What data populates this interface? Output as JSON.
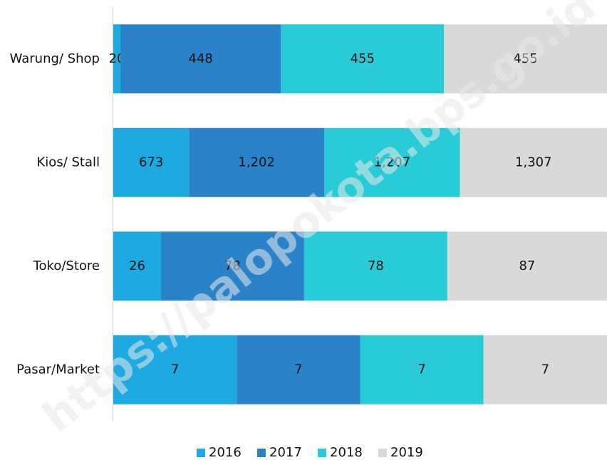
{
  "chart_data": {
    "type": "bar",
    "orientation": "horizontal",
    "stacking": "percent",
    "watermark": "https://palopokota.bps.go.id",
    "categories": [
      "Warung/ Shop",
      "Kios/ Stall",
      "Toko/Store",
      "Pasar/Market"
    ],
    "series": [
      {
        "name": "2016",
        "color": "#1fa9e1",
        "values": [
          20,
          673,
          26,
          7
        ]
      },
      {
        "name": "2017",
        "color": "#2a82c9",
        "values": [
          448,
          1202,
          78,
          7
        ],
        "value_labels": [
          "448",
          "1,202",
          "78",
          "7"
        ]
      },
      {
        "name": "2018",
        "color": "#29ccd6",
        "values": [
          455,
          1207,
          78,
          7
        ],
        "value_labels": [
          "455",
          "1,207",
          "78",
          "7"
        ]
      },
      {
        "name": "2019",
        "color": "#d9d9d9",
        "values": [
          455,
          1307,
          87,
          7
        ],
        "value_labels": [
          "455",
          "1,307",
          "87",
          "7"
        ]
      }
    ],
    "legend": "bottom"
  }
}
